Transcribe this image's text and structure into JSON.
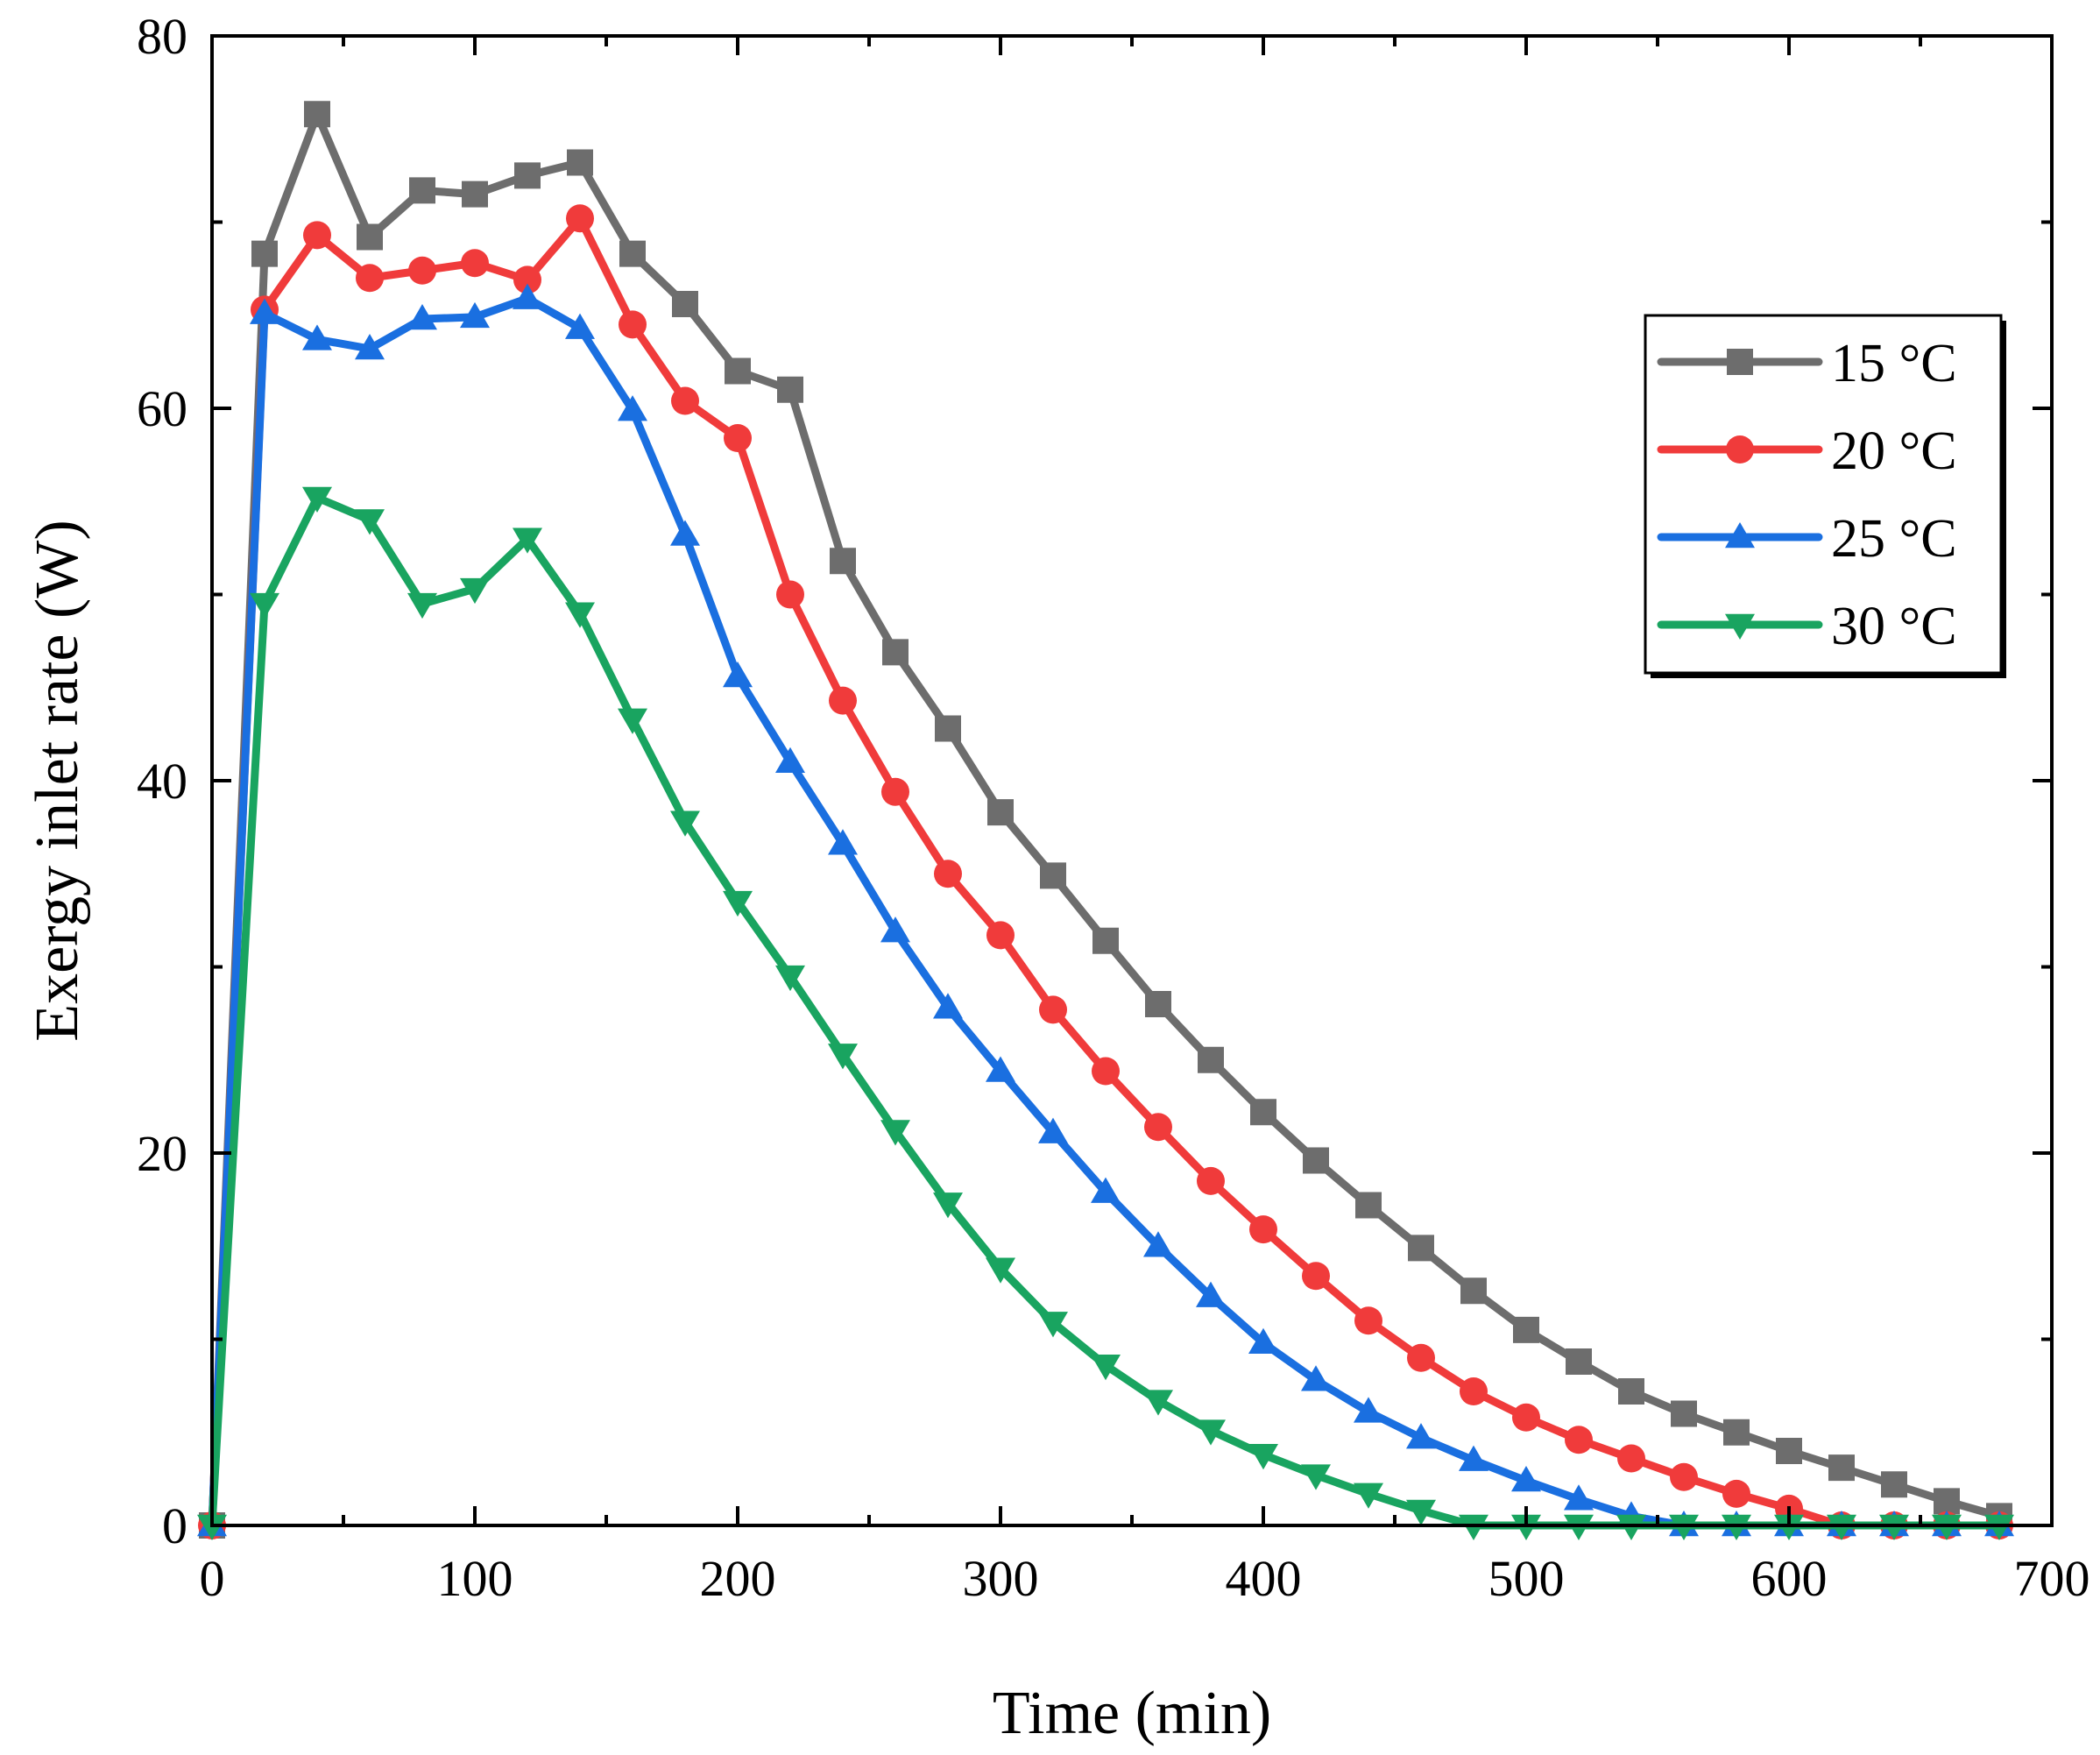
{
  "chart_data": {
    "type": "line",
    "title": "",
    "xlabel": "Time (min)",
    "ylabel": "Exergy inlet rate (W)",
    "xlim": [
      0,
      700
    ],
    "ylim": [
      0,
      80
    ],
    "xticks": [
      0,
      100,
      200,
      300,
      400,
      500,
      600,
      700
    ],
    "xtick_labels": [
      "0",
      "100",
      "200",
      "300",
      "400",
      "500",
      "600",
      "700"
    ],
    "yticks": [
      0,
      20,
      40,
      60,
      80
    ],
    "ytick_labels": [
      "0",
      "20",
      "40",
      "60",
      "80"
    ],
    "grid": false,
    "legend_position": "upper-right",
    "x": [
      0,
      20,
      40,
      60,
      80,
      100,
      120,
      140,
      160,
      180,
      200,
      220,
      240,
      260,
      280,
      300,
      320,
      340,
      360,
      380,
      400,
      420,
      440,
      460,
      480,
      500,
      520,
      540,
      560,
      580,
      600,
      620,
      640,
      660,
      680
    ],
    "series": [
      {
        "name": "15 °C",
        "color": "#6d6d6d",
        "marker": "square",
        "values": [
          0,
          68.3,
          75.8,
          69.2,
          71.7,
          71.5,
          72.5,
          73.2,
          68.3,
          65.6,
          62.0,
          61.0,
          51.8,
          46.9,
          42.8,
          38.3,
          34.9,
          31.4,
          28.0,
          25.0,
          22.2,
          19.6,
          17.2,
          14.9,
          12.6,
          10.5,
          8.8,
          7.2,
          6.0,
          5.0,
          4.0,
          3.1,
          2.2,
          1.3,
          0.5
        ]
      },
      {
        "name": "20 °C",
        "color": "#f03b3b",
        "marker": "circle",
        "values": [
          0,
          65.3,
          69.3,
          67.0,
          67.4,
          67.8,
          66.9,
          70.2,
          64.5,
          60.4,
          58.4,
          50.0,
          44.3,
          39.4,
          35.0,
          31.7,
          27.7,
          24.4,
          21.4,
          18.5,
          15.9,
          13.4,
          11.0,
          9.0,
          7.2,
          5.8,
          4.6,
          3.6,
          2.6,
          1.7,
          0.9,
          0,
          0,
          0,
          0
        ]
      },
      {
        "name": "25 °C",
        "color": "#1a6fe0",
        "marker": "triangle-up",
        "values": [
          0,
          65.1,
          63.7,
          63.2,
          64.8,
          64.9,
          65.9,
          64.3,
          59.9,
          53.2,
          45.6,
          41.0,
          36.6,
          31.9,
          27.8,
          24.4,
          21.1,
          17.9,
          15.0,
          12.3,
          9.8,
          7.8,
          6.1,
          4.7,
          3.5,
          2.4,
          1.4,
          0.5,
          0,
          0,
          0,
          0,
          0,
          0,
          0
        ]
      },
      {
        "name": "30 °C",
        "color": "#19a460",
        "marker": "triangle-down",
        "values": [
          0,
          49.5,
          55.2,
          54.0,
          49.5,
          50.3,
          53.0,
          49.0,
          43.3,
          37.8,
          33.5,
          29.5,
          25.3,
          21.2,
          17.3,
          13.8,
          10.9,
          8.6,
          6.7,
          5.1,
          3.8,
          2.7,
          1.7,
          0.8,
          0,
          0,
          0,
          0,
          0,
          0,
          0,
          0,
          0,
          0,
          0
        ]
      }
    ]
  }
}
